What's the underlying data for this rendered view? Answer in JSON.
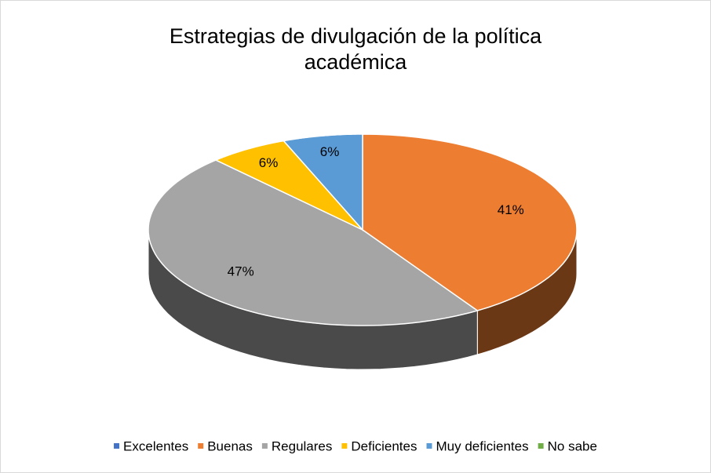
{
  "chart_data": {
    "type": "pie3d",
    "title": "Estrategias de divulgación de la política académica",
    "categories": [
      "Excelentes",
      "Buenas",
      "Regulares",
      "Deficientes",
      "Muy deficientes",
      "No sabe"
    ],
    "values": [
      0,
      41,
      47,
      6,
      6,
      0
    ],
    "value_labels": [
      null,
      "41%",
      "47%",
      "6%",
      "6%",
      null
    ],
    "colors": [
      "#4472c4",
      "#ed7d31",
      "#a5a5a5",
      "#ffc000",
      "#5b9bd5",
      "#70ad47"
    ],
    "legend": "bottom"
  }
}
